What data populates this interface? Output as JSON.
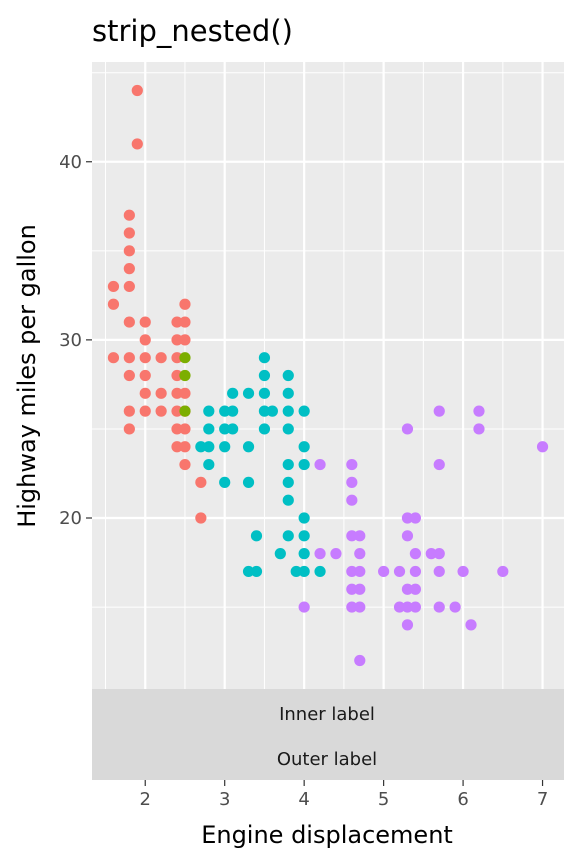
{
  "chart_data": {
    "type": "scatter",
    "title": "strip_nested()",
    "xlabel": "Engine displacement",
    "ylabel": "Highway miles per gallon",
    "xlim": [
      1.33,
      7.27
    ],
    "ylim": [
      10.4,
      45.6
    ],
    "x_ticks": [
      2,
      3,
      4,
      5,
      6,
      7
    ],
    "y_ticks": [
      20,
      30,
      40
    ],
    "grid": true,
    "strips": {
      "inner": "Inner label",
      "outer": "Outer label"
    },
    "colors": {
      "panel_bg": "#EBEBEB",
      "strip_bg": "#D9D9D9",
      "grid": "#FFFFFF",
      "tick": "#333333",
      "tick_label": "#4D4D4D"
    },
    "series": [
      {
        "color": "#F8766D",
        "points": [
          [
            1.9,
            44
          ],
          [
            1.9,
            41
          ],
          [
            1.8,
            37
          ],
          [
            1.8,
            36
          ],
          [
            1.8,
            35
          ],
          [
            1.8,
            34
          ],
          [
            1.8,
            33
          ],
          [
            1.6,
            33
          ],
          [
            1.6,
            32
          ],
          [
            2.5,
            32
          ],
          [
            1.8,
            31
          ],
          [
            2.0,
            31
          ],
          [
            2.4,
            31
          ],
          [
            2.5,
            31
          ],
          [
            2.0,
            30
          ],
          [
            2.4,
            30
          ],
          [
            2.5,
            30
          ],
          [
            1.6,
            29
          ],
          [
            1.8,
            29
          ],
          [
            2.0,
            29
          ],
          [
            2.2,
            29
          ],
          [
            2.4,
            29
          ],
          [
            1.8,
            28
          ],
          [
            2.0,
            28
          ],
          [
            2.4,
            28
          ],
          [
            2.0,
            27
          ],
          [
            2.2,
            27
          ],
          [
            2.4,
            27
          ],
          [
            2.5,
            27
          ],
          [
            1.8,
            26
          ],
          [
            2.0,
            26
          ],
          [
            2.2,
            26
          ],
          [
            2.4,
            26
          ],
          [
            2.5,
            26
          ],
          [
            1.8,
            25
          ],
          [
            2.4,
            25
          ],
          [
            2.5,
            25
          ],
          [
            2.4,
            24
          ],
          [
            2.5,
            24
          ],
          [
            2.5,
            23
          ],
          [
            2.7,
            22
          ],
          [
            2.7,
            20
          ]
        ]
      },
      {
        "color": "#7CAE00",
        "points": [
          [
            2.5,
            29
          ],
          [
            2.5,
            28
          ],
          [
            2.5,
            26
          ]
        ]
      },
      {
        "color": "#00BFC4",
        "points": [
          [
            3.5,
            29
          ],
          [
            3.5,
            28
          ],
          [
            3.8,
            28
          ],
          [
            3.1,
            27
          ],
          [
            3.3,
            27
          ],
          [
            3.5,
            27
          ],
          [
            3.8,
            27
          ],
          [
            2.8,
            26
          ],
          [
            3.0,
            26
          ],
          [
            3.1,
            26
          ],
          [
            3.5,
            26
          ],
          [
            3.6,
            26
          ],
          [
            3.8,
            26
          ],
          [
            4.0,
            26
          ],
          [
            2.8,
            25
          ],
          [
            3.0,
            25
          ],
          [
            3.1,
            25
          ],
          [
            3.5,
            25
          ],
          [
            3.8,
            25
          ],
          [
            2.7,
            24
          ],
          [
            2.8,
            24
          ],
          [
            3.0,
            24
          ],
          [
            3.3,
            24
          ],
          [
            4.0,
            24
          ],
          [
            2.8,
            23
          ],
          [
            3.8,
            23
          ],
          [
            4.0,
            23
          ],
          [
            3.0,
            22
          ],
          [
            3.3,
            22
          ],
          [
            3.8,
            22
          ],
          [
            3.8,
            21
          ],
          [
            4.0,
            20
          ],
          [
            3.4,
            19
          ],
          [
            3.8,
            19
          ],
          [
            4.0,
            19
          ],
          [
            3.7,
            18
          ],
          [
            4.0,
            18
          ],
          [
            3.3,
            17
          ],
          [
            3.4,
            17
          ],
          [
            3.9,
            17
          ],
          [
            4.0,
            17
          ],
          [
            4.2,
            17
          ]
        ]
      },
      {
        "color": "#C77CFF",
        "points": [
          [
            7.0,
            24
          ],
          [
            5.7,
            26
          ],
          [
            6.2,
            26
          ],
          [
            5.3,
            25
          ],
          [
            6.2,
            25
          ],
          [
            4.2,
            23
          ],
          [
            4.6,
            23
          ],
          [
            5.7,
            23
          ],
          [
            4.6,
            22
          ],
          [
            4.6,
            21
          ],
          [
            5.3,
            20
          ],
          [
            5.4,
            20
          ],
          [
            4.6,
            19
          ],
          [
            4.7,
            19
          ],
          [
            5.3,
            19
          ],
          [
            4.2,
            18
          ],
          [
            4.4,
            18
          ],
          [
            4.7,
            18
          ],
          [
            5.4,
            18
          ],
          [
            5.6,
            18
          ],
          [
            5.7,
            18
          ],
          [
            4.6,
            17
          ],
          [
            4.7,
            17
          ],
          [
            5.0,
            17
          ],
          [
            5.2,
            17
          ],
          [
            5.4,
            17
          ],
          [
            5.7,
            17
          ],
          [
            6.0,
            17
          ],
          [
            6.5,
            17
          ],
          [
            4.0,
            15
          ],
          [
            4.6,
            15
          ],
          [
            4.7,
            15
          ],
          [
            5.2,
            15
          ],
          [
            5.3,
            15
          ],
          [
            5.4,
            15
          ],
          [
            5.7,
            15
          ],
          [
            5.9,
            15
          ],
          [
            4.6,
            16
          ],
          [
            4.7,
            16
          ],
          [
            5.3,
            16
          ],
          [
            5.4,
            16
          ],
          [
            5.3,
            14
          ],
          [
            6.1,
            14
          ],
          [
            4.7,
            12
          ]
        ]
      }
    ]
  }
}
